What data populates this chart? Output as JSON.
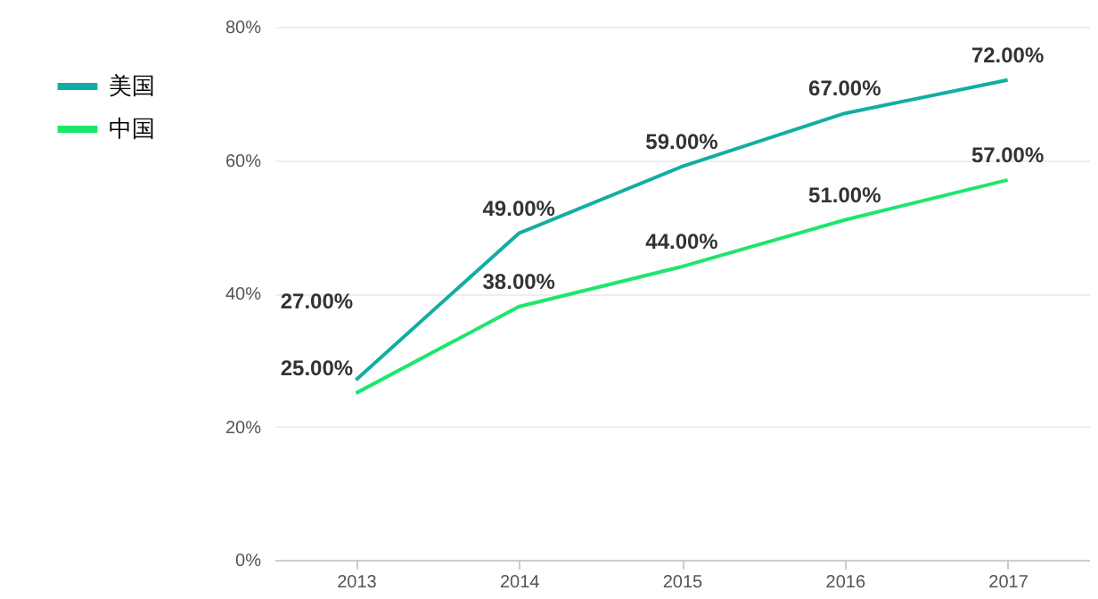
{
  "chart_data": {
    "type": "line",
    "categories": [
      "2013",
      "2014",
      "2015",
      "2016",
      "2017"
    ],
    "series": [
      {
        "name": "美国",
        "color": "#13ada3",
        "values": [
          27,
          49,
          59,
          67,
          72
        ],
        "value_labels": [
          "27.00%",
          "49.00%",
          "59.00%",
          "67.00%",
          "72.00%"
        ]
      },
      {
        "name": "中国",
        "color": "#1de66c",
        "values": [
          25,
          38,
          44,
          51,
          57
        ],
        "value_labels": [
          "25.00%",
          "38.00%",
          "44.00%",
          "51.00%",
          "57.00%"
        ]
      }
    ],
    "ylim": [
      0,
      80
    ],
    "yticks": [
      {
        "value": 0,
        "label": "0%"
      },
      {
        "value": 20,
        "label": "20%"
      },
      {
        "value": 40,
        "label": "40%"
      },
      {
        "value": 60,
        "label": "60%"
      },
      {
        "value": 80,
        "label": "80%"
      }
    ],
    "grid": "y",
    "legend": "left",
    "marker": "none",
    "line_style": "solid"
  }
}
